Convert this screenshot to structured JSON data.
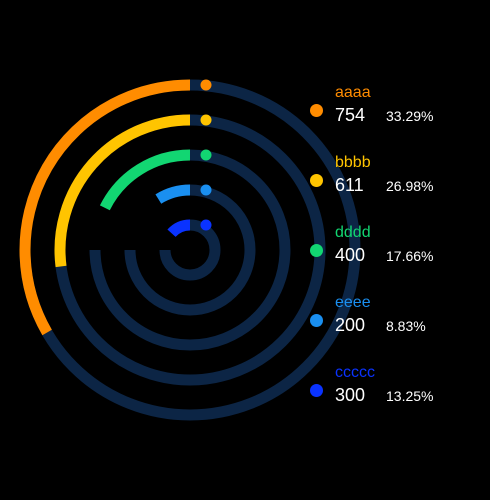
{
  "chart_data": {
    "type": "radial-bar",
    "track_color": "#0c2545",
    "series": [
      {
        "name": "aaaa",
        "value": 754,
        "percent": "33.29%",
        "color": "#ff8c00"
      },
      {
        "name": "bbbb",
        "value": 611,
        "percent": "26.98%",
        "color": "#ffc400"
      },
      {
        "name": "dddd",
        "value": 400,
        "percent": "17.66%",
        "color": "#12d672"
      },
      {
        "name": "eeee",
        "value": 200,
        "percent": "8.83%",
        "color": "#1a8ff0"
      },
      {
        "name": "ccccc",
        "value": 300,
        "percent": "13.25%",
        "color": "#0a33ff"
      }
    ]
  }
}
